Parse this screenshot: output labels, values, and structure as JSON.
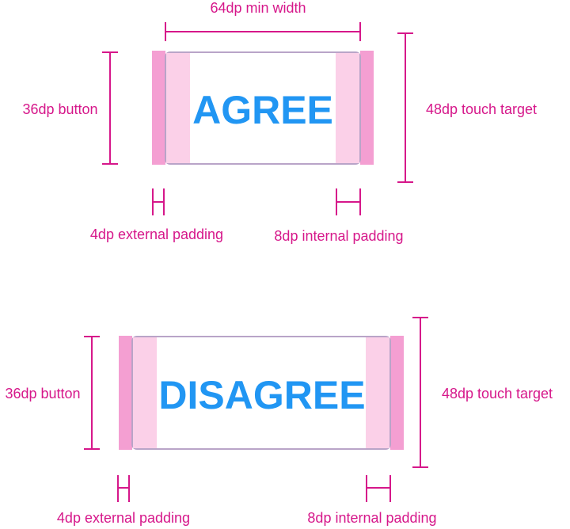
{
  "colors": {
    "annotation": "#d6178a",
    "button_text": "#2196f3",
    "external_padding": "#f49fd2",
    "internal_padding": "#fbd0e8",
    "button_outline": "#b9a4c8"
  },
  "agree": {
    "min_width_label": "64dp min width",
    "button_height_label": "36dp button",
    "touch_target_label": "48dp touch target",
    "button_text": "AGREE",
    "external_padding_label": "4dp external padding",
    "internal_padding_label": "8dp internal padding"
  },
  "disagree": {
    "button_height_label": "36dp button",
    "touch_target_label": "48dp touch target",
    "button_text": "DISAGREE",
    "external_padding_label": "4dp external padding",
    "internal_padding_label": "8dp internal padding"
  }
}
